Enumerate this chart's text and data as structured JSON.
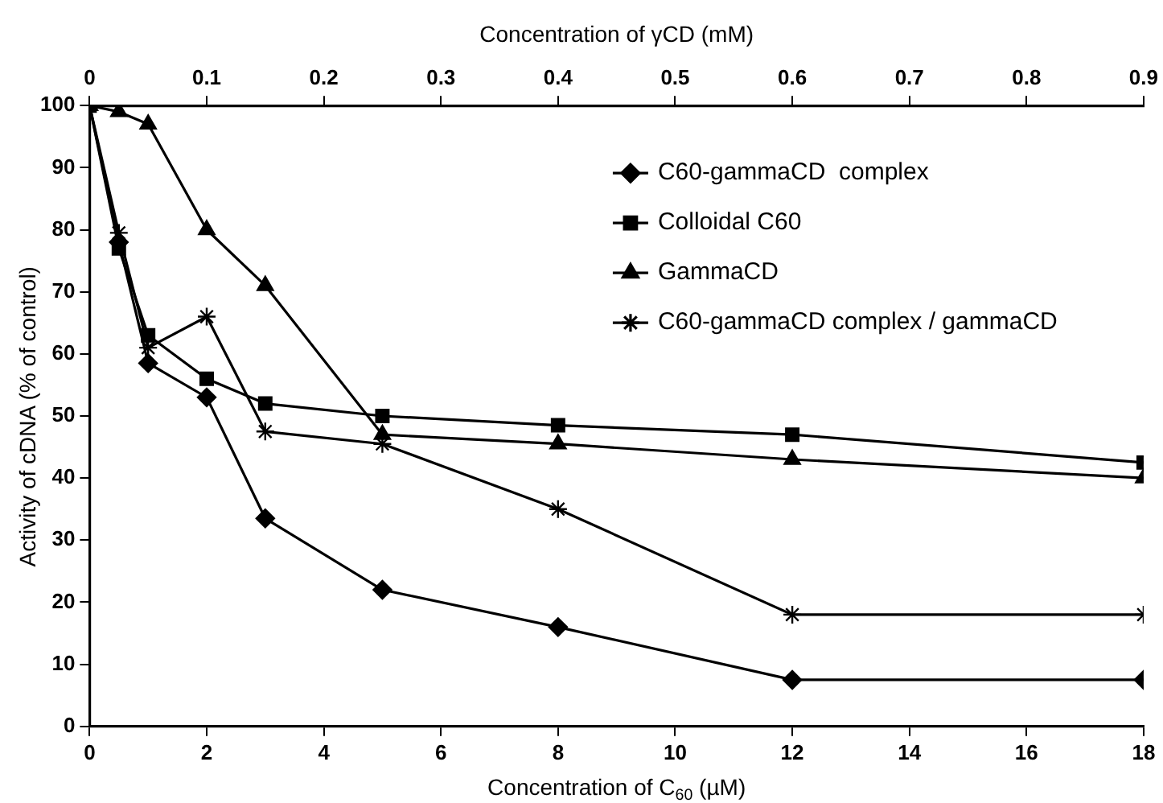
{
  "chart_data": {
    "type": "line",
    "xlabel": "Concentration of C$_{60}$ (µM)",
    "ylabel": "Activity of cDNA (% of control)",
    "x2label": "Concentration of γCD (mM)",
    "x": [
      0,
      0.5,
      1,
      2,
      3,
      5,
      8,
      12,
      18
    ],
    "series": [
      {
        "name": "C60-gammaCD  complex",
        "color": "#000000",
        "marker": "diamond",
        "values": [
          100,
          78,
          58.5,
          53,
          33.5,
          22,
          16,
          7.5,
          7.5
        ]
      },
      {
        "name": "Colloidal C60",
        "color": "#000000",
        "marker": "square",
        "values": [
          100,
          77,
          63,
          56,
          52,
          50,
          48.5,
          47,
          42.5
        ]
      },
      {
        "name": "GammaCD",
        "color": "#000000",
        "marker": "triangle",
        "values": [
          100,
          99,
          97,
          80,
          71,
          47,
          45.5,
          43,
          40
        ]
      },
      {
        "name": "C60-gammaCD complex / gammaCD",
        "color": "#000000",
        "marker": "cross",
        "values": [
          100,
          79.5,
          61,
          66,
          47.5,
          45.5,
          35,
          18,
          18
        ]
      }
    ],
    "xlim": [
      0,
      18
    ],
    "xticks": [
      0,
      2,
      4,
      6,
      8,
      10,
      12,
      14,
      16,
      18
    ],
    "x2lim": [
      0,
      0.9
    ],
    "x2ticks": [
      0,
      0.1,
      0.2,
      0.3,
      0.4,
      0.5,
      0.6,
      0.7,
      0.8,
      0.9
    ],
    "ylim": [
      0,
      100
    ],
    "yticks": [
      0,
      10,
      20,
      30,
      40,
      50,
      60,
      70,
      80,
      90,
      100
    ],
    "grid": false,
    "legend": "top right",
    "line_style": "solid"
  }
}
